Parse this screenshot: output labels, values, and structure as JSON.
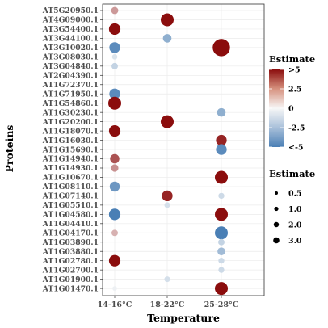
{
  "colors": {
    "high": "#8B0D0D",
    "mid": "#F7F7F7",
    "low": "#4A7FB5",
    "panel_border": "#333333",
    "grid": "#EBEBEB"
  },
  "chart_data": {
    "type": "scatter",
    "title": "",
    "xlabel": "Temperature",
    "ylabel": "Proteins",
    "x_categories": [
      "14-16°C",
      "18-22°C",
      "25-28°C"
    ],
    "y_categories": [
      "AT5G20950.1",
      "AT4G09000.1",
      "AT3G54400.1",
      "AT3G44100.1",
      "AT3G10020.1",
      "AT3G08030.1",
      "AT3G04840.1",
      "AT2G04390.1",
      "AT1G72370.1",
      "AT1G71950.1",
      "AT1G54860.1",
      "AT1G30230.1",
      "AT1G20200.1",
      "AT1G18070.1",
      "AT1G16030.1",
      "AT1G15690.1",
      "AT1G14940.1",
      "AT1G14930.1",
      "AT1G10670.1",
      "AT1G08110.1",
      "AT1G07140.1",
      "AT1G05510.1",
      "AT1G04580.1",
      "AT1G04410.1",
      "AT1G04170.1",
      "AT1G03890.1",
      "AT1G03880.1",
      "AT1G02780.1",
      "AT1G02700.1",
      "AT1G01900.1",
      "AT1G01470.1"
    ],
    "points": [
      {
        "x": "14-16°C",
        "y": "AT5G20950.1",
        "estimate": 2.0
      },
      {
        "x": "18-22°C",
        "y": "AT4G09000.1",
        "estimate": 6.0
      },
      {
        "x": "14-16°C",
        "y": "AT3G54400.1",
        "estimate": 5.0
      },
      {
        "x": "18-22°C",
        "y": "AT3G44100.1",
        "estimate": -3.0
      },
      {
        "x": "14-16°C",
        "y": "AT3G10020.1",
        "estimate": -4.5
      },
      {
        "x": "25-28°C",
        "y": "AT3G10020.1",
        "estimate": 9.0
      },
      {
        "x": "14-16°C",
        "y": "AT3G08030.1",
        "estimate": -0.8
      },
      {
        "x": "14-16°C",
        "y": "AT3G04840.1",
        "estimate": -1.5
      },
      {
        "x": "14-16°C",
        "y": "AT1G71950.1",
        "estimate": -4.5
      },
      {
        "x": "14-16°C",
        "y": "AT1G54860.1",
        "estimate": 6.0
      },
      {
        "x": "25-28°C",
        "y": "AT1G30230.1",
        "estimate": -3.0
      },
      {
        "x": "18-22°C",
        "y": "AT1G20200.1",
        "estimate": 6.0
      },
      {
        "x": "14-16°C",
        "y": "AT1G18070.1",
        "estimate": 5.0
      },
      {
        "x": "25-28°C",
        "y": "AT1G16030.1",
        "estimate": 4.5
      },
      {
        "x": "25-28°C",
        "y": "AT1G15690.1",
        "estimate": -4.5
      },
      {
        "x": "14-16°C",
        "y": "AT1G14940.1",
        "estimate": 3.5
      },
      {
        "x": "14-16°C",
        "y": "AT1G14930.1",
        "estimate": 2.2
      },
      {
        "x": "25-28°C",
        "y": "AT1G10670.1",
        "estimate": 6.0
      },
      {
        "x": "14-16°C",
        "y": "AT1G08110.1",
        "estimate": -4.0
      },
      {
        "x": "18-22°C",
        "y": "AT1G07140.1",
        "estimate": 4.5
      },
      {
        "x": "25-28°C",
        "y": "AT1G07140.1",
        "estimate": -1.2
      },
      {
        "x": "18-22°C",
        "y": "AT1G05510.1",
        "estimate": -1.0
      },
      {
        "x": "14-16°C",
        "y": "AT1G04580.1",
        "estimate": -5.0
      },
      {
        "x": "25-28°C",
        "y": "AT1G04580.1",
        "estimate": 6.0
      },
      {
        "x": "14-16°C",
        "y": "AT1G04170.1",
        "estimate": 1.5
      },
      {
        "x": "25-28°C",
        "y": "AT1G04170.1",
        "estimate": -6.0
      },
      {
        "x": "25-28°C",
        "y": "AT1G03890.1",
        "estimate": -1.5
      },
      {
        "x": "25-28°C",
        "y": "AT1G03880.1",
        "estimate": -2.5
      },
      {
        "x": "14-16°C",
        "y": "AT1G02780.1",
        "estimate": 5.0
      },
      {
        "x": "25-28°C",
        "y": "AT1G02780.1",
        "estimate": -1.2
      },
      {
        "x": "25-28°C",
        "y": "AT1G02700.1",
        "estimate": -1.2
      },
      {
        "x": "18-22°C",
        "y": "AT1G01900.1",
        "estimate": -1.0
      },
      {
        "x": "14-16°C",
        "y": "AT1G01470.1",
        "estimate": -0.3
      },
      {
        "x": "25-28°C",
        "y": "AT1G01470.1",
        "estimate": 6.0
      }
    ],
    "color_legend": {
      "title": "Estimate",
      "labels": [
        ">5",
        "2.5",
        "0",
        "-2.5",
        "<-5"
      ],
      "values": [
        5,
        2.5,
        0,
        -2.5,
        -5
      ]
    },
    "size_legend": {
      "title": "Estimate",
      "labels": [
        "0.5",
        "1.0",
        "2.0",
        "3.0"
      ],
      "values": [
        0.5,
        1.0,
        2.0,
        3.0
      ]
    },
    "grid": true,
    "legend_position": "right"
  }
}
